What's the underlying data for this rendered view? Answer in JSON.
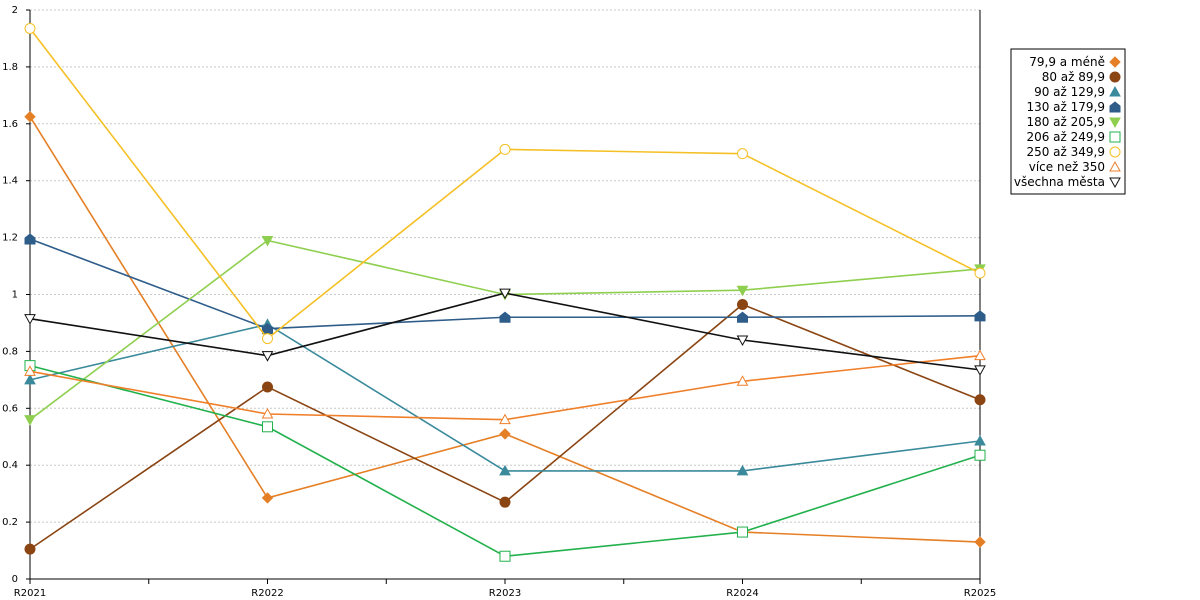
{
  "chart_data": {
    "type": "line",
    "categories": [
      "R2021",
      "R2022",
      "R2023",
      "R2024",
      "R2025"
    ],
    "ylim": [
      0,
      2
    ],
    "yticks": [
      0,
      0.2,
      0.4,
      0.6,
      0.8,
      1,
      1.2,
      1.4,
      1.6,
      1.8,
      2
    ],
    "ytick_labels": [
      "0",
      "0.2",
      "0.4",
      "0.6",
      "0.8",
      "1",
      "1.2",
      "1.4",
      "1.6",
      "1.8",
      "2"
    ],
    "grid": true,
    "legend_position": "top-right",
    "series": [
      {
        "name": "79,9 a méně",
        "color": "#e57f25",
        "marker": "diamond",
        "filled": true,
        "values": [
          1.625,
          0.285,
          0.51,
          0.165,
          0.13
        ]
      },
      {
        "name": "80 až 89,9",
        "color": "#8b4513",
        "marker": "circle",
        "filled": true,
        "values": [
          0.105,
          0.675,
          0.27,
          0.965,
          0.63
        ]
      },
      {
        "name": "90 až 129,9",
        "color": "#3a8a9c",
        "marker": "triangle-up",
        "filled": true,
        "values": [
          0.7,
          0.895,
          0.38,
          0.38,
          0.485
        ]
      },
      {
        "name": "130 až 179,9",
        "color": "#2e5d8a",
        "marker": "house",
        "filled": true,
        "values": [
          1.195,
          0.88,
          0.92,
          0.92,
          0.925
        ]
      },
      {
        "name": "180 až 205,9",
        "color": "#8fcf4f",
        "marker": "triangle-down",
        "filled": true,
        "values": [
          0.56,
          1.19,
          1.0,
          1.015,
          1.09
        ]
      },
      {
        "name": "206 až 249,9",
        "color": "#22b14c",
        "marker": "square",
        "filled": false,
        "values": [
          0.75,
          0.535,
          0.08,
          0.165,
          0.435
        ]
      },
      {
        "name": "250 až 349,9",
        "color": "#f5c025",
        "marker": "circle",
        "filled": false,
        "values": [
          1.935,
          0.845,
          1.51,
          1.495,
          1.075
        ]
      },
      {
        "name": "více než 350",
        "color": "#f07f2a",
        "marker": "triangle-up",
        "filled": false,
        "values": [
          0.73,
          0.58,
          0.56,
          0.695,
          0.785
        ]
      },
      {
        "name": "všechna města",
        "color": "#111111",
        "marker": "triangle-down",
        "filled": false,
        "values": [
          0.915,
          0.785,
          1.005,
          0.84,
          0.735
        ]
      }
    ]
  }
}
